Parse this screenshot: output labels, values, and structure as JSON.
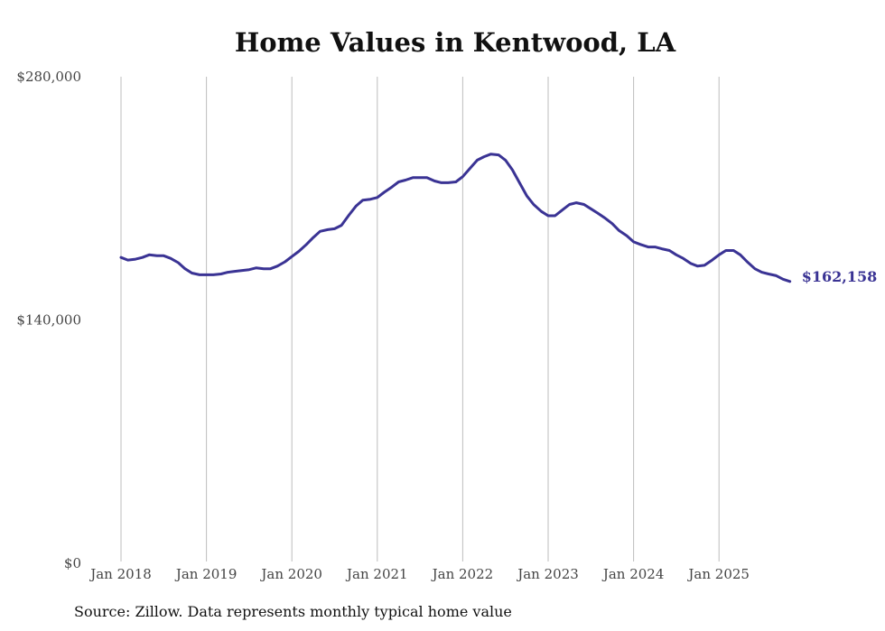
{
  "chart_data": {
    "type": "line",
    "title": "Home Values in Kentwood, LA",
    "source": "Source: Zillow. Data represents monthly typical home value",
    "xlabel": "",
    "ylabel": "",
    "ylim": [
      0,
      280000
    ],
    "yticks": [
      {
        "value": 0,
        "label": "$0"
      },
      {
        "value": 140000,
        "label": "$140,000"
      },
      {
        "value": 280000,
        "label": "$280,000"
      }
    ],
    "xticks": [
      {
        "year": 2018,
        "label": "Jan 2018"
      },
      {
        "year": 2019,
        "label": "Jan 2019"
      },
      {
        "year": 2020,
        "label": "Jan 2020"
      },
      {
        "year": 2021,
        "label": "Jan 2021"
      },
      {
        "year": 2022,
        "label": "Jan 2022"
      },
      {
        "year": 2023,
        "label": "Jan 2023"
      },
      {
        "year": 2024,
        "label": "Jan 2024"
      },
      {
        "year": 2025,
        "label": "Jan 2025"
      }
    ],
    "grid": "vertical",
    "line_color": "#3a3394",
    "end_label": "$162,158",
    "series": [
      {
        "name": "Typical home value",
        "points": [
          [
            2018.0,
            176000
          ],
          [
            2018.08,
            174500
          ],
          [
            2018.17,
            175000
          ],
          [
            2018.25,
            176000
          ],
          [
            2018.33,
            177500
          ],
          [
            2018.42,
            177000
          ],
          [
            2018.5,
            177000
          ],
          [
            2018.58,
            175500
          ],
          [
            2018.67,
            173000
          ],
          [
            2018.75,
            169500
          ],
          [
            2018.83,
            167000
          ],
          [
            2018.92,
            166000
          ],
          [
            2019.0,
            166000
          ],
          [
            2019.08,
            166000
          ],
          [
            2019.17,
            166500
          ],
          [
            2019.25,
            167500
          ],
          [
            2019.33,
            168000
          ],
          [
            2019.42,
            168500
          ],
          [
            2019.5,
            169000
          ],
          [
            2019.58,
            170000
          ],
          [
            2019.67,
            169500
          ],
          [
            2019.75,
            169500
          ],
          [
            2019.83,
            171000
          ],
          [
            2019.92,
            173500
          ],
          [
            2020.0,
            176500
          ],
          [
            2020.08,
            179500
          ],
          [
            2020.17,
            183500
          ],
          [
            2020.25,
            187500
          ],
          [
            2020.33,
            191000
          ],
          [
            2020.42,
            192000
          ],
          [
            2020.5,
            192500
          ],
          [
            2020.58,
            194500
          ],
          [
            2020.67,
            200500
          ],
          [
            2020.75,
            205500
          ],
          [
            2020.83,
            209000
          ],
          [
            2020.92,
            209500
          ],
          [
            2021.0,
            210500
          ],
          [
            2021.08,
            213500
          ],
          [
            2021.17,
            216500
          ],
          [
            2021.25,
            219500
          ],
          [
            2021.33,
            220500
          ],
          [
            2021.42,
            222000
          ],
          [
            2021.5,
            222000
          ],
          [
            2021.58,
            222000
          ],
          [
            2021.67,
            220000
          ],
          [
            2021.75,
            219000
          ],
          [
            2021.83,
            219000
          ],
          [
            2021.92,
            219500
          ],
          [
            2022.0,
            222500
          ],
          [
            2022.08,
            227000
          ],
          [
            2022.17,
            232000
          ],
          [
            2022.25,
            234000
          ],
          [
            2022.33,
            235500
          ],
          [
            2022.42,
            235000
          ],
          [
            2022.5,
            232000
          ],
          [
            2022.58,
            226500
          ],
          [
            2022.67,
            218500
          ],
          [
            2022.75,
            211500
          ],
          [
            2022.83,
            206500
          ],
          [
            2022.92,
            202500
          ],
          [
            2023.0,
            200000
          ],
          [
            2023.08,
            200000
          ],
          [
            2023.17,
            203500
          ],
          [
            2023.25,
            206500
          ],
          [
            2023.33,
            207500
          ],
          [
            2023.42,
            206500
          ],
          [
            2023.5,
            204000
          ],
          [
            2023.58,
            201500
          ],
          [
            2023.67,
            198500
          ],
          [
            2023.75,
            195500
          ],
          [
            2023.83,
            191500
          ],
          [
            2023.92,
            188500
          ],
          [
            2024.0,
            185000
          ],
          [
            2024.08,
            183500
          ],
          [
            2024.17,
            182000
          ],
          [
            2024.25,
            182000
          ],
          [
            2024.33,
            181000
          ],
          [
            2024.42,
            180000
          ],
          [
            2024.5,
            177500
          ],
          [
            2024.58,
            175500
          ],
          [
            2024.67,
            172500
          ],
          [
            2024.75,
            171000
          ],
          [
            2024.83,
            171500
          ],
          [
            2024.92,
            174500
          ],
          [
            2025.0,
            177500
          ],
          [
            2025.08,
            180000
          ],
          [
            2025.17,
            180000
          ],
          [
            2025.25,
            177500
          ],
          [
            2025.33,
            173500
          ],
          [
            2025.42,
            169500
          ],
          [
            2025.5,
            167500
          ],
          [
            2025.58,
            166500
          ],
          [
            2025.67,
            165500
          ],
          [
            2025.75,
            163500
          ],
          [
            2025.83,
            162158
          ]
        ]
      }
    ]
  }
}
